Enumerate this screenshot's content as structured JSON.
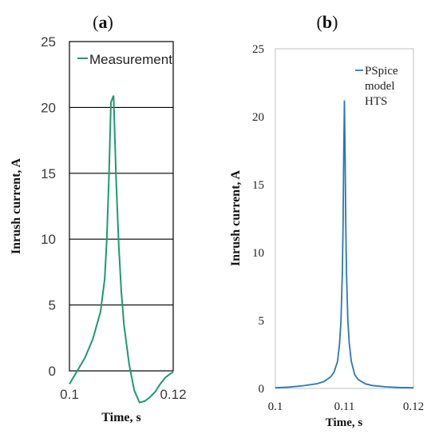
{
  "chart_data": [
    {
      "panel_label": "a",
      "type": "line",
      "title": "",
      "xlabel": "Time, s",
      "ylabel": "Inrush current, A",
      "xlim": [
        0.1,
        0.12
      ],
      "ylim": [
        0,
        25
      ],
      "x_ticks": [
        "0.1",
        "0.12"
      ],
      "y_ticks": [
        "0",
        "5",
        "10",
        "15",
        "20",
        "25"
      ],
      "grid": "horizontal",
      "legend": "top-left",
      "line_color": "#1e9a6e",
      "series": [
        {
          "name": "Measurement",
          "x": [
            0.1,
            0.1015,
            0.103,
            0.1045,
            0.106,
            0.1068,
            0.1072,
            0.1076,
            0.108,
            0.1085,
            0.109,
            0.1095,
            0.11,
            0.1105,
            0.1115,
            0.1125,
            0.1135,
            0.1145,
            0.1155,
            0.1165,
            0.1175,
            0.1185,
            0.1195,
            0.12
          ],
          "values": [
            -1.0,
            0.0,
            1.0,
            2.4,
            4.5,
            7.0,
            10.0,
            14.5,
            20.4,
            20.9,
            14.5,
            9.5,
            6.0,
            3.5,
            0.5,
            -1.5,
            -2.4,
            -2.3,
            -2.0,
            -1.6,
            -1.0,
            -0.5,
            -0.2,
            -0.1
          ]
        }
      ]
    },
    {
      "panel_label": "b",
      "type": "line",
      "title": "",
      "xlabel": "Time, s",
      "ylabel": "Inrush current, A",
      "xlim": [
        0.1,
        0.12
      ],
      "ylim": [
        0,
        25
      ],
      "x_ticks": [
        "0.1",
        "0.11",
        "0.12"
      ],
      "y_ticks": [
        "0",
        "5",
        "10",
        "15",
        "20",
        "25"
      ],
      "grid": "none",
      "legend": "top-right",
      "line_color": "#2a78b5",
      "series": [
        {
          "name": "PSpice model HTS",
          "legend_lines": [
            "PSpice",
            "model",
            "HTS"
          ],
          "x": [
            0.1,
            0.102,
            0.104,
            0.106,
            0.107,
            0.108,
            0.1085,
            0.109,
            0.1093,
            0.1095,
            0.1097,
            0.1098,
            0.1099,
            0.11,
            0.1101,
            0.1102,
            0.1103,
            0.1105,
            0.1107,
            0.111,
            0.1115,
            0.112,
            0.113,
            0.114,
            0.116,
            0.118,
            0.12
          ],
          "values": [
            0.05,
            0.1,
            0.2,
            0.35,
            0.5,
            0.85,
            1.2,
            2.0,
            3.3,
            5.0,
            8.5,
            12.0,
            17.0,
            21.2,
            17.0,
            12.0,
            8.5,
            5.0,
            3.3,
            2.0,
            1.0,
            0.65,
            0.35,
            0.22,
            0.12,
            0.07,
            0.05
          ]
        }
      ]
    }
  ]
}
